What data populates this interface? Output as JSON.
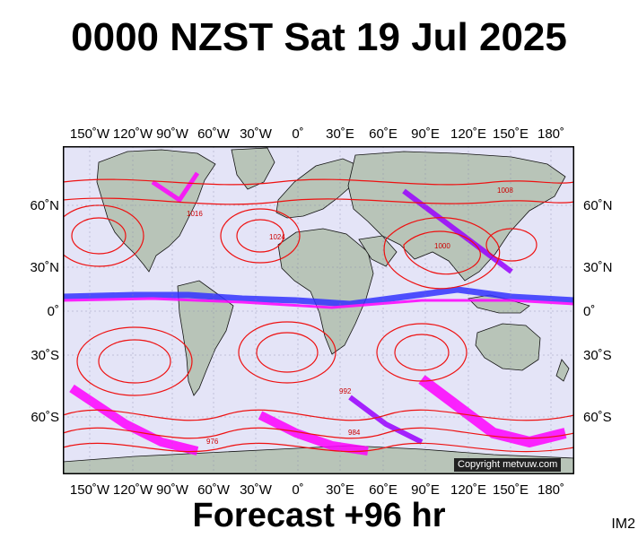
{
  "title": "0000 NZST Sat 19 Jul 2025",
  "footer": "Forecast +96 hr",
  "badge": "IM2",
  "copyright": "Copyright metvuw.com",
  "longitude_labels": [
    "150˚W",
    "120˚W",
    "90˚W",
    "60˚W",
    "30˚W",
    "0˚",
    "30˚E",
    "60˚E",
    "90˚E",
    "120˚E",
    "150˚E",
    "180˚"
  ],
  "latitude_labels": [
    "60˚N",
    "30˚N",
    "0˚",
    "30˚S",
    "60˚S"
  ],
  "isobar_labels": [
    "1024",
    "1016",
    "1008",
    "1000",
    "992",
    "984",
    "976"
  ],
  "colors": {
    "ocean": "#e4e4f7",
    "land": "#b8c4b8",
    "isobar": "#ee1111",
    "precip_magenta": "#ff00ff",
    "precip_purple": "#9900ff",
    "precip_blue": "#3333ff"
  }
}
